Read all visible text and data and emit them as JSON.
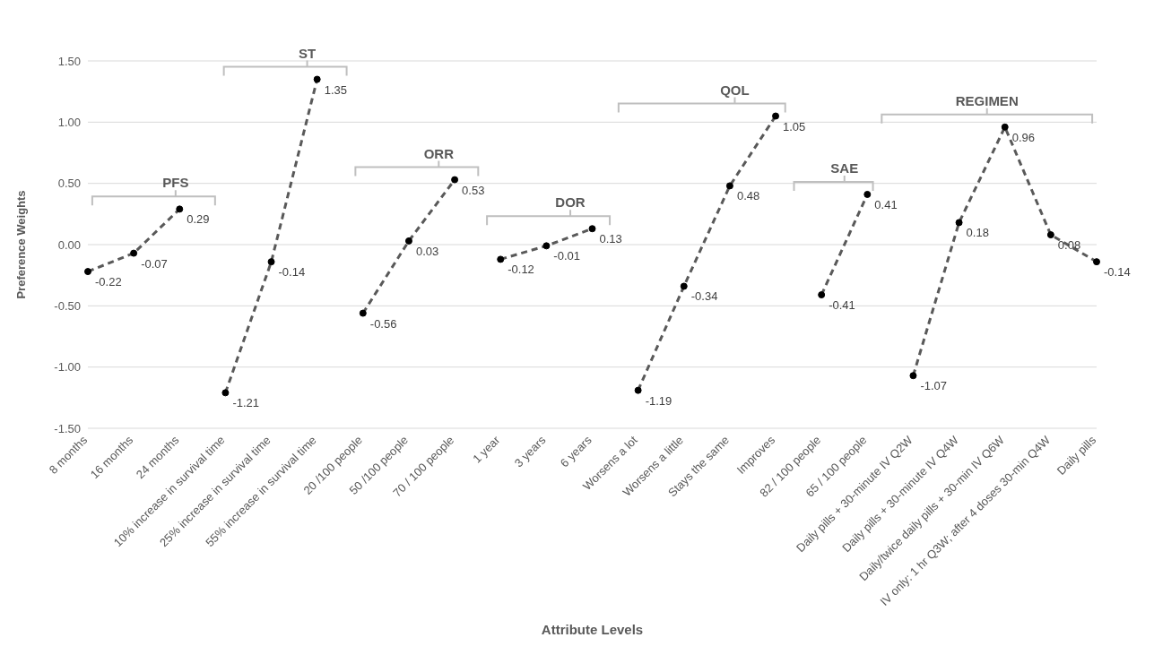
{
  "chart_data": {
    "type": "line",
    "xlabel": "Attribute Levels",
    "ylabel": "Preference Weights",
    "categories": [
      "8 months",
      "16 months",
      "24 months",
      "10% increase in survival time",
      "25% increase in survival time",
      "55% increase in survival time",
      "20 /100 people",
      "50 /100 people",
      "70 / 100 people",
      "1 year",
      "3 years",
      "6 years",
      "Worsens a lot",
      "Worsens a little",
      "Stays the same",
      "Improves",
      "82 / 100 people",
      "65 / 100 people",
      "Daily pills + 30-minute IV Q2W",
      "Daily pills + 30-minute IV Q4W",
      "Daily/twice daily pills + 30-min IV Q6W",
      "IV only: 1 hr Q3W; after 4 doses 30-min Q4W",
      "Daily pills"
    ],
    "series": [
      {
        "name": "PFS",
        "color": "#595959",
        "values": [
          -0.22,
          -0.07,
          0.29,
          null,
          null,
          null,
          null,
          null,
          null,
          null,
          null,
          null,
          null,
          null,
          null,
          null,
          null,
          null,
          null,
          null,
          null,
          null,
          null
        ]
      },
      {
        "name": "ST",
        "color": "#595959",
        "values": [
          null,
          null,
          null,
          -1.21,
          -0.14,
          1.35,
          null,
          null,
          null,
          null,
          null,
          null,
          null,
          null,
          null,
          null,
          null,
          null,
          null,
          null,
          null,
          null,
          null
        ]
      },
      {
        "name": "ORR",
        "color": "#595959",
        "values": [
          null,
          null,
          null,
          null,
          null,
          null,
          -0.56,
          0.03,
          0.53,
          null,
          null,
          null,
          null,
          null,
          null,
          null,
          null,
          null,
          null,
          null,
          null,
          null,
          null
        ]
      },
      {
        "name": "DOR",
        "color": "#595959",
        "values": [
          null,
          null,
          null,
          null,
          null,
          null,
          null,
          null,
          null,
          -0.12,
          -0.01,
          0.13,
          null,
          null,
          null,
          null,
          null,
          null,
          null,
          null,
          null,
          null,
          null
        ]
      },
      {
        "name": "QOL",
        "color": "#595959",
        "values": [
          null,
          null,
          null,
          null,
          null,
          null,
          null,
          null,
          null,
          null,
          null,
          null,
          -1.19,
          -0.34,
          0.48,
          1.05,
          null,
          null,
          null,
          null,
          null,
          null,
          null
        ]
      },
      {
        "name": "SAE",
        "color": "#595959",
        "values": [
          null,
          null,
          null,
          null,
          null,
          null,
          null,
          null,
          null,
          null,
          null,
          null,
          null,
          null,
          null,
          null,
          -0.41,
          0.41,
          null,
          null,
          null,
          null,
          null
        ]
      },
      {
        "name": "REGIMEN",
        "color": "#595959",
        "values": [
          null,
          null,
          null,
          null,
          null,
          null,
          null,
          null,
          null,
          null,
          null,
          null,
          null,
          null,
          null,
          null,
          null,
          null,
          -1.07,
          0.18,
          0.96,
          0.08,
          -0.14
        ]
      }
    ],
    "ylim": [
      -1.5,
      1.5
    ],
    "yticks": [
      {
        "value": -1.5,
        "label": "-1.50"
      },
      {
        "value": -1,
        "label": "-1.00"
      },
      {
        "value": -0.5,
        "label": "-0.50"
      },
      {
        "value": 0,
        "label": "0.00"
      },
      {
        "value": 0.5,
        "label": "0.50"
      },
      {
        "value": 1,
        "label": "1.00"
      },
      {
        "value": 1.5,
        "label": "1.50"
      }
    ],
    "grid": "y",
    "legend": false,
    "marker": "circle",
    "line_style": "dashed",
    "data_labels": true
  }
}
